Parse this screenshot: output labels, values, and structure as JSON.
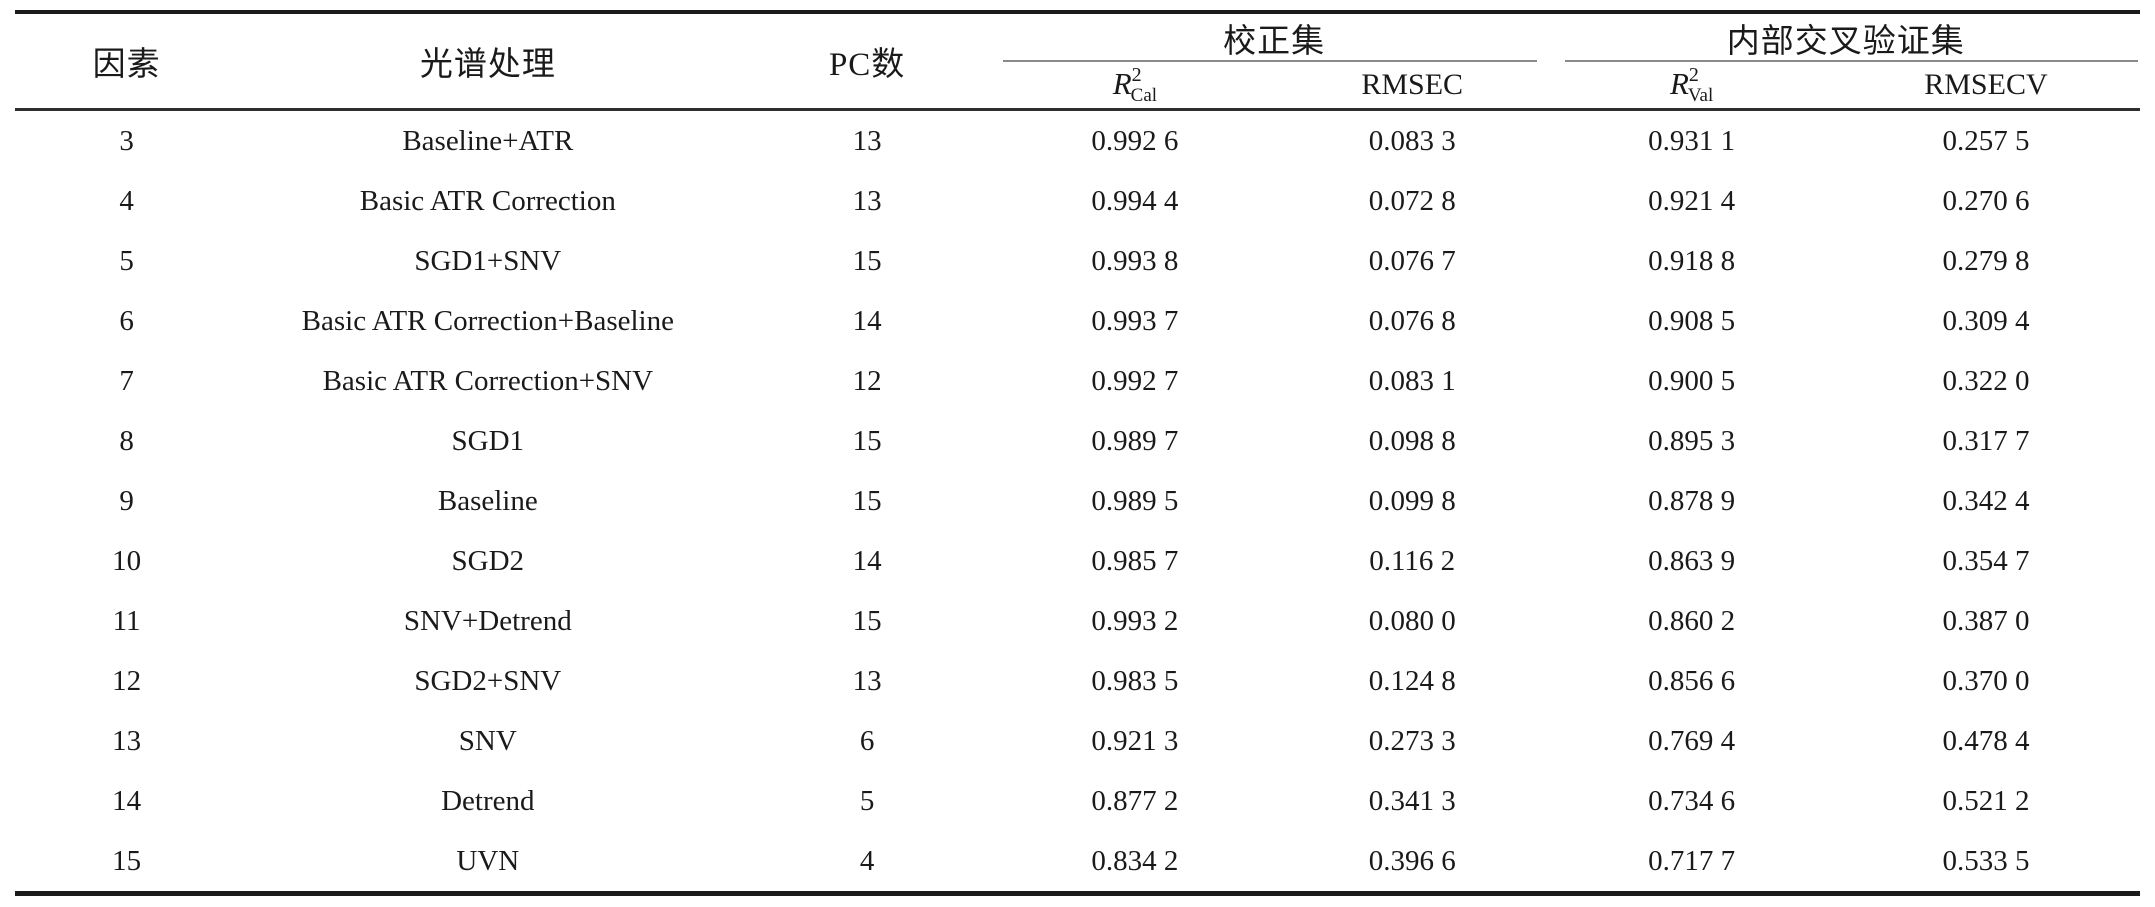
{
  "table": {
    "headers": {
      "factor": "因素",
      "treatment": "光谱处理",
      "pc": "PC数",
      "calibration_group": "校正集",
      "validation_group": "内部交叉验证集",
      "r2": {
        "base": "R",
        "sup": "2",
        "cal_sub": "Cal",
        "val_sub": "Val"
      },
      "rmsec": "RMSEC",
      "rmsecv": "RMSECV"
    },
    "row_keys": [
      "factor",
      "treatment",
      "pc",
      "r2cal",
      "rmsec",
      "r2val",
      "rmsecv"
    ],
    "rows": [
      {
        "factor": "3",
        "treatment": "Baseline+ATR",
        "pc": "13",
        "r2cal": "0.992 6",
        "rmsec": "0.083 3",
        "r2val": "0.931 1",
        "rmsecv": "0.257 5"
      },
      {
        "factor": "4",
        "treatment": "Basic ATR Correction",
        "pc": "13",
        "r2cal": "0.994 4",
        "rmsec": "0.072 8",
        "r2val": "0.921 4",
        "rmsecv": "0.270 6"
      },
      {
        "factor": "5",
        "treatment": "SGD1+SNV",
        "pc": "15",
        "r2cal": "0.993 8",
        "rmsec": "0.076 7",
        "r2val": "0.918 8",
        "rmsecv": "0.279 8"
      },
      {
        "factor": "6",
        "treatment": "Basic ATR Correction+Baseline",
        "pc": "14",
        "r2cal": "0.993 7",
        "rmsec": "0.076 8",
        "r2val": "0.908 5",
        "rmsecv": "0.309 4"
      },
      {
        "factor": "7",
        "treatment": "Basic ATR Correction+SNV",
        "pc": "12",
        "r2cal": "0.992 7",
        "rmsec": "0.083 1",
        "r2val": "0.900 5",
        "rmsecv": "0.322 0"
      },
      {
        "factor": "8",
        "treatment": "SGD1",
        "pc": "15",
        "r2cal": "0.989 7",
        "rmsec": "0.098 8",
        "r2val": "0.895 3",
        "rmsecv": "0.317 7"
      },
      {
        "factor": "9",
        "treatment": "Baseline",
        "pc": "15",
        "r2cal": "0.989 5",
        "rmsec": "0.099 8",
        "r2val": "0.878 9",
        "rmsecv": "0.342 4"
      },
      {
        "factor": "10",
        "treatment": "SGD2",
        "pc": "14",
        "r2cal": "0.985 7",
        "rmsec": "0.116 2",
        "r2val": "0.863 9",
        "rmsecv": "0.354 7"
      },
      {
        "factor": "11",
        "treatment": "SNV+Detrend",
        "pc": "15",
        "r2cal": "0.993 2",
        "rmsec": "0.080 0",
        "r2val": "0.860 2",
        "rmsecv": "0.387 0"
      },
      {
        "factor": "12",
        "treatment": "SGD2+SNV",
        "pc": "13",
        "r2cal": "0.983 5",
        "rmsec": "0.124 8",
        "r2val": "0.856 6",
        "rmsecv": "0.370 0"
      },
      {
        "factor": "13",
        "treatment": "SNV",
        "pc": "6",
        "r2cal": "0.921 3",
        "rmsec": "0.273 3",
        "r2val": "0.769 4",
        "rmsecv": "0.478 4"
      },
      {
        "factor": "14",
        "treatment": "Detrend",
        "pc": "5",
        "r2cal": "0.877 2",
        "rmsec": "0.341 3",
        "r2val": "0.734 6",
        "rmsecv": "0.521 2"
      },
      {
        "factor": "15",
        "treatment": "UVN",
        "pc": "4",
        "r2cal": "0.834 2",
        "rmsec": "0.396 6",
        "r2val": "0.717 7",
        "rmsecv": "0.533 5"
      }
    ]
  }
}
